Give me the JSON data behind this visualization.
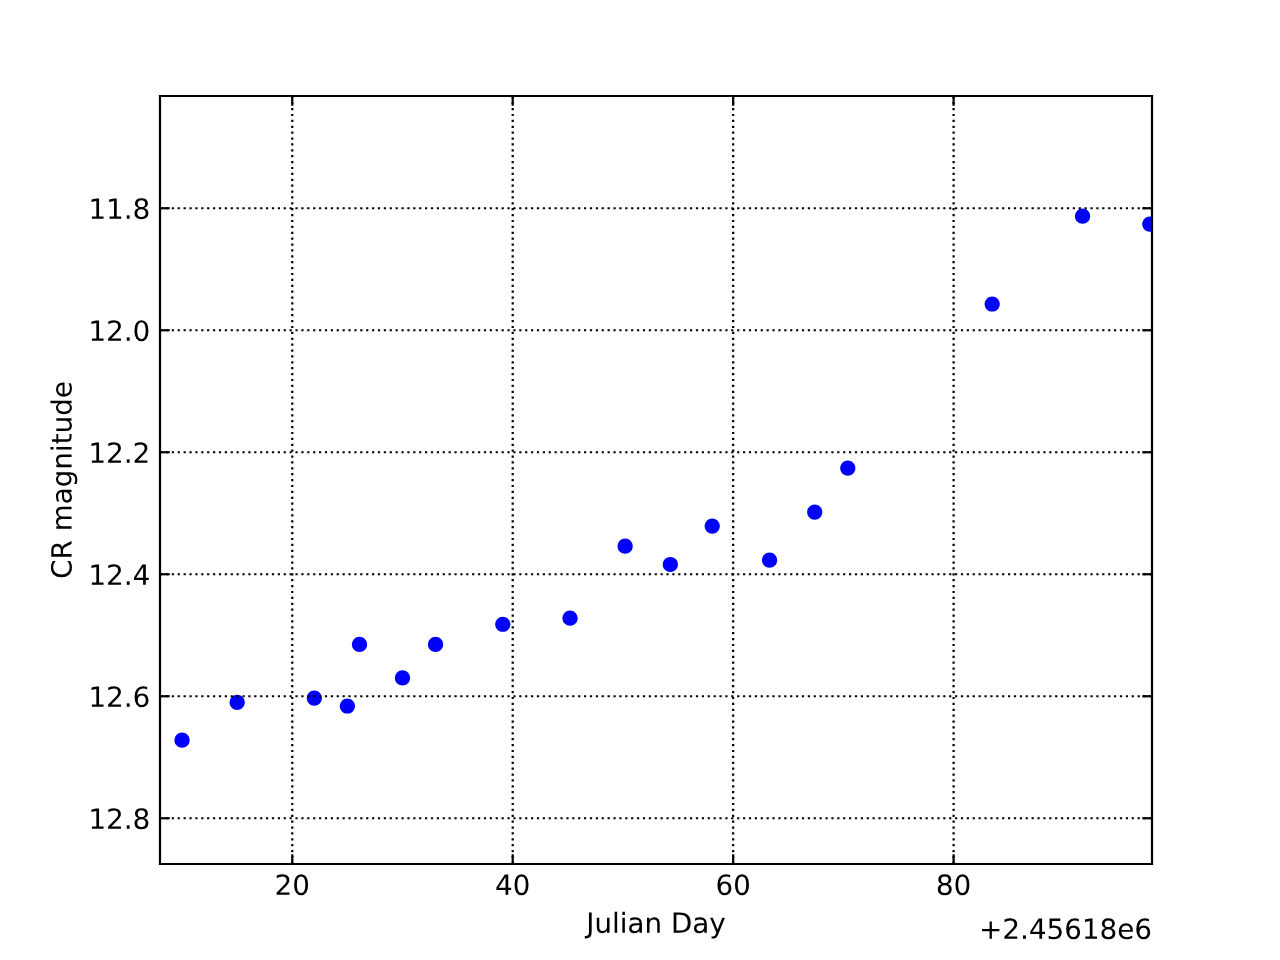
{
  "chart_data": {
    "type": "scatter",
    "xlabel": "Julian Day",
    "ylabel": "CR magnitude",
    "x": [
      10.0,
      15.0,
      22.0,
      25.0,
      26.1,
      30.0,
      33.0,
      39.1,
      45.2,
      50.2,
      54.3,
      58.1,
      63.3,
      67.4,
      70.4,
      83.5,
      91.7,
      97.8
    ],
    "series": [
      {
        "color": "#0000ff",
        "values": [
          12.672,
          12.61,
          12.603,
          12.616,
          12.515,
          12.57,
          12.515,
          12.482,
          12.472,
          12.354,
          12.384,
          12.321,
          12.377,
          12.298,
          12.226,
          11.957,
          11.813,
          11.826
        ]
      }
    ],
    "xlim": [
      8,
      98
    ],
    "xticks": [
      20,
      40,
      60,
      80
    ],
    "ylim": [
      12.875,
      11.616
    ],
    "yticks": [
      {
        "value": 11.8,
        "label": "11.8"
      },
      {
        "value": 12.0,
        "label": "12.0"
      },
      {
        "value": 12.2,
        "label": "12.2"
      },
      {
        "value": 12.4,
        "label": "12.4"
      },
      {
        "value": 12.6,
        "label": "12.6"
      },
      {
        "value": 12.8,
        "label": "12.8"
      }
    ],
    "annotations": [
      "+2.45618e6"
    ],
    "grid": true,
    "marker": "circle"
  }
}
